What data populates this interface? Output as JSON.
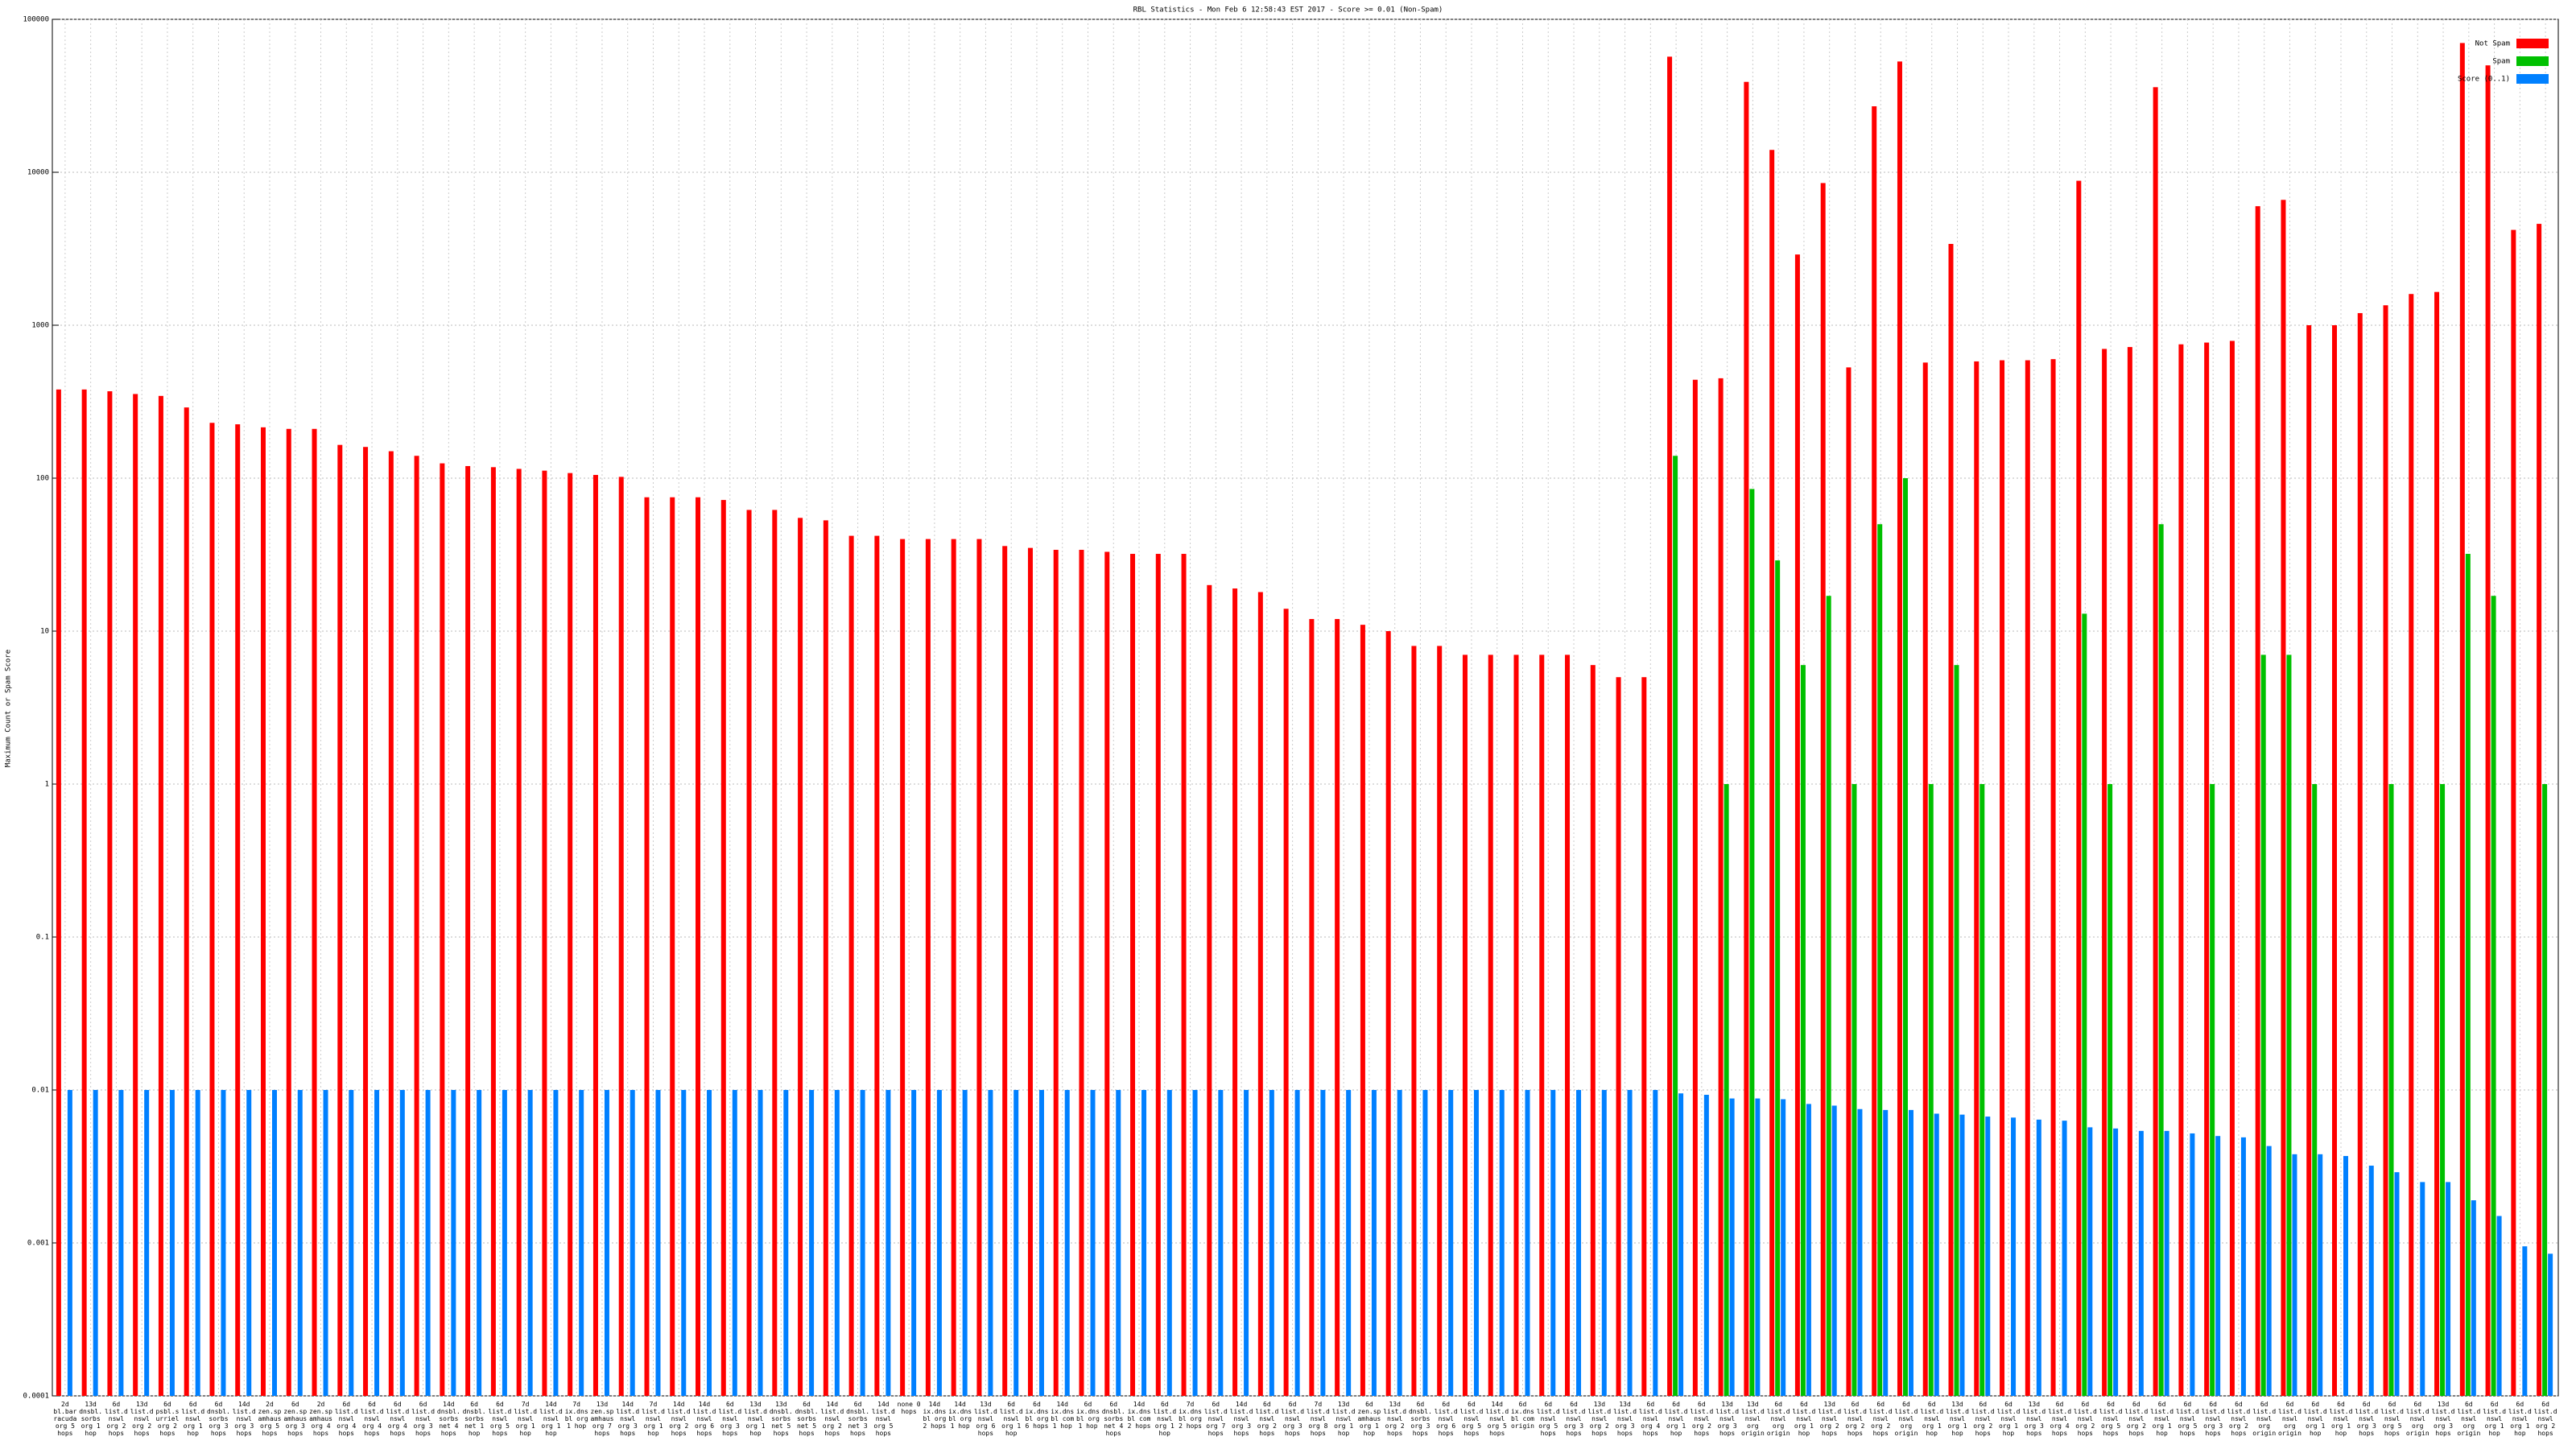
{
  "chart_data": {
    "type": "bar",
    "title": "RBL Statistics - Mon Feb  6 12:58:43 EST 2017 - Score >= 0.01 (Non-Spam)",
    "ylabel": "Maximum Count or Spam Score",
    "log_scale": true,
    "grid": true,
    "legend": "top-right",
    "ylim": [
      0.0001,
      100000
    ],
    "yticks": [
      0.0001,
      0.001,
      0.01,
      0.1,
      1,
      10,
      100,
      1000,
      10000,
      100000
    ],
    "categories": [
      "2d bl.barracuda org 5 hops",
      "13d dnsbl.sorbs org 1 hop",
      "6d list.dnswl org 2 hops",
      "13d list.dnswl org 2 hops",
      "6d psbl.surriel org 2 hops",
      "6d list.dnswl org 1 hop",
      "6d dnsbl.sorbs org 3 hops",
      "14d list.dnswl org 3 hops",
      "2d zen.spamhaus org 5 hops",
      "6d zen.spamhaus org 3 hops",
      "2d zen.spamhaus org 4 hops",
      "6d list.dnswl org 4 hops",
      "6d list.dnswl org 4 hops",
      "6d list.dnswl org 4 hops",
      "6d list.dnswl org 3 hops",
      "14d dnsbl.sorbs net 4 hops",
      "6d dnsbl.sorbs net 1 hop",
      "6d list.dnswl org 5 hops",
      "7d list.dnswl org 1 hop",
      "14d list.dnswl org 1 hop",
      "7d ix.dnsbl org 1 hop",
      "13d zen.spamhaus org 7 hops",
      "14d list.dnswl org 3 hops",
      "7d list.dnswl org 1 hop",
      "14d list.dnswl org 2 hops",
      "14d list.dnswl org 6 hops",
      "6d list.dnswl org 3 hops",
      "13d list.dnswl org 1 hop",
      "13d dnsbl.sorbs net 5 hops",
      "6d dnsbl.sorbs net 5 hops",
      "14d list.dnswl org 2 hops",
      "6d dnsbl.sorbs net 3 hops",
      "14d list.dnswl org 5 hops",
      "none 0 hops",
      "14d ix.dnsbl org 2 hops",
      "14d ix.dnsbl org 1 hop",
      "13d list.dnswl org 6 hops",
      "6d list.dnswl org 1 hop",
      "6d ix.dnsbl org 6 hops",
      "14d ix.dnsbl com 1 hop",
      "6d ix.dnsbl org 1 hop",
      "6d dnsbl.sorbs net 4 hops",
      "14d ix.dnsbl com 2 hops",
      "6d list.dnswl org 1 hop",
      "7d ix.dnsbl org 2 hops",
      "6d list.dnswl org 7 hops",
      "14d list.dnswl org 3 hops",
      "6d list.dnswl org 2 hops",
      "6d list.dnswl org 3 hops",
      "7d list.dnswl org 8 hops",
      "13d list.dnswl org 1 hop",
      "6d zen.spamhaus org 1 hop",
      "13d list.dnswl org 2 hops",
      "6d dnsbl.sorbs org 3 hops",
      "6d list.dnswl org 6 hops",
      "6d list.dnswl org 5 hops",
      "14d list.dnswl org 5 hops",
      "6d ix.dnsbl com origin",
      "6d list.dnswl org 5 hops",
      "6d list.dnswl org 3 hops",
      "13d list.dnswl org 2 hops",
      "13d list.dnswl org 3 hops",
      "6d list.dnswl org 4 hops",
      "6d list.dnswl org 1 hop",
      "6d list.dnswl org 2 hops",
      "13d list.dnswl org 3 hops",
      "13d list.dnswl org origin",
      "6d list.dnswl org origin",
      "6d list.dnswl org 1 hop",
      "13d list.dnswl org 2 hops",
      "6d list.dnswl org 2 hops",
      "6d list.dnswl org 2 hops",
      "6d list.dnswl org origin",
      "6d list.dnswl org 1 hop",
      "13d list.dnswl org 1 hop",
      "6d list.dnswl org 2 hops",
      "6d list.dnswl org 1 hop",
      "13d list.dnswl org 3 hops",
      "6d list.dnswl org 4 hops",
      "6d list.dnswl org 2 hops",
      "6d list.dnswl org 5 hops",
      "6d list.dnswl org 2 hops",
      "6d list.dnswl org 1 hop",
      "6d list.dnswl org 5 hops",
      "6d list.dnswl org 3 hops",
      "6d list.dnswl org 2 hops",
      "6d list.dnswl org origin",
      "6d list.dnswl org origin",
      "6d list.dnswl org 1 hop",
      "6d list.dnswl org 1 hop",
      "6d list.dnswl org 3 hops",
      "6d list.dnswl org 5 hops",
      "6d list.dnswl org origin",
      "13d list.dnswl org 3 hops",
      "6d list.dnswl org origin",
      "6d list.dnswl org 1 hop",
      "6d list.dnswl org 1 hop",
      "6d list.dnswl org 2 hops"
    ],
    "series": [
      {
        "name": "Not Spam",
        "color": "#ff0000",
        "values": [
          380,
          380,
          370,
          355,
          345,
          290,
          230,
          225,
          215,
          210,
          210,
          165,
          160,
          150,
          140,
          125,
          120,
          118,
          115,
          112,
          108,
          105,
          102,
          75,
          75,
          75,
          72,
          62,
          62,
          55,
          53,
          42,
          42,
          40,
          40,
          40,
          40,
          36,
          35,
          34,
          34,
          33,
          32,
          32,
          32,
          20,
          19,
          18,
          14,
          12,
          12,
          11,
          10,
          8,
          8,
          7,
          7,
          7,
          7,
          7,
          6,
          5,
          5,
          57000,
          440,
          450,
          39000,
          14000,
          2900,
          8500,
          530,
          27000,
          53000,
          570,
          3400,
          580,
          590,
          590,
          600,
          8800,
          700,
          720,
          36000,
          750,
          770,
          790,
          6000,
          6600,
          1000,
          1000,
          1200,
          1350,
          1600,
          1650,
          70000,
          50000,
          4200,
          4600
        ]
      },
      {
        "name": "Spam",
        "color": "#00c000",
        "values": [
          null,
          null,
          null,
          null,
          null,
          null,
          null,
          null,
          null,
          null,
          null,
          null,
          null,
          null,
          null,
          null,
          null,
          null,
          null,
          null,
          null,
          null,
          null,
          null,
          null,
          null,
          null,
          null,
          null,
          null,
          null,
          null,
          null,
          null,
          null,
          null,
          null,
          null,
          null,
          null,
          null,
          null,
          null,
          null,
          null,
          null,
          null,
          null,
          null,
          null,
          null,
          null,
          null,
          null,
          null,
          null,
          null,
          null,
          null,
          null,
          null,
          null,
          null,
          140,
          null,
          1,
          85,
          29,
          6,
          17,
          1,
          50,
          100,
          1,
          6,
          1,
          null,
          null,
          null,
          13,
          1,
          null,
          50,
          null,
          1,
          null,
          7,
          7,
          1,
          null,
          null,
          1,
          null,
          1,
          32,
          17,
          null,
          1
        ]
      },
      {
        "name": "Score (0..1)",
        "color": "#0080ff",
        "values": [
          0.01,
          0.01,
          0.01,
          0.01,
          0.01,
          0.01,
          0.01,
          0.01,
          0.01,
          0.01,
          0.01,
          0.01,
          0.01,
          0.01,
          0.01,
          0.01,
          0.01,
          0.01,
          0.01,
          0.01,
          0.01,
          0.01,
          0.01,
          0.01,
          0.01,
          0.01,
          0.01,
          0.01,
          0.01,
          0.01,
          0.01,
          0.01,
          0.01,
          0.01,
          0.01,
          0.01,
          0.01,
          0.01,
          0.01,
          0.01,
          0.01,
          0.01,
          0.01,
          0.01,
          0.01,
          0.01,
          0.01,
          0.01,
          0.01,
          0.01,
          0.01,
          0.01,
          0.01,
          0.01,
          0.01,
          0.01,
          0.01,
          0.01,
          0.01,
          0.01,
          0.01,
          0.01,
          0.01,
          0.0095,
          0.0093,
          0.0088,
          0.0088,
          0.0087,
          0.0081,
          0.0079,
          0.0075,
          0.0074,
          0.0074,
          0.007,
          0.0069,
          0.0067,
          0.0066,
          0.0064,
          0.0063,
          0.0057,
          0.0056,
          0.0054,
          0.0054,
          0.0052,
          0.005,
          0.0049,
          0.0043,
          0.0038,
          0.0038,
          0.0037,
          0.0032,
          0.0029,
          0.0025,
          0.0025,
          0.0019,
          0.0015,
          0.00095,
          0.00085
        ]
      }
    ]
  }
}
